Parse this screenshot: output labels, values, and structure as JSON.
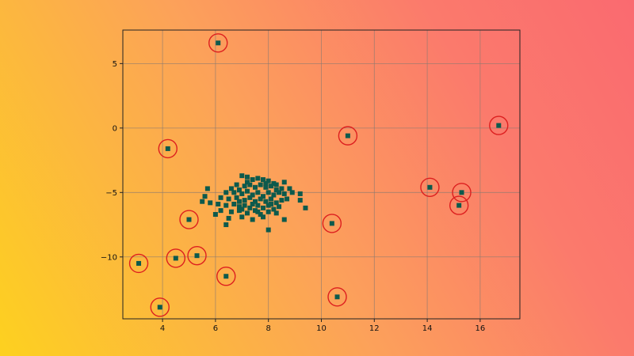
{
  "chart_data": {
    "type": "scatter",
    "title": "",
    "xlabel": "",
    "ylabel": "",
    "xlim": [
      2.5,
      17.5
    ],
    "ylim": [
      -14.8,
      7.6
    ],
    "xticks": [
      4,
      6,
      8,
      10,
      12,
      14,
      16
    ],
    "yticks": [
      5,
      0,
      -5,
      -10
    ],
    "xtick_labels": [
      "4",
      "6",
      "8",
      "10",
      "12",
      "14",
      "16"
    ],
    "ytick_labels": [
      "5",
      "0",
      "−5",
      "−10"
    ],
    "grid": true,
    "legend": "none",
    "marker": "square",
    "marker_color": "#0d5a4c",
    "outlier_ring_color": "#dd1f1f",
    "outliers": [
      {
        "x": 6.1,
        "y": 6.6
      },
      {
        "x": 4.2,
        "y": -1.6
      },
      {
        "x": 11.0,
        "y": -0.6
      },
      {
        "x": 16.7,
        "y": 0.2
      },
      {
        "x": 14.1,
        "y": -4.6
      },
      {
        "x": 15.3,
        "y": -5.0
      },
      {
        "x": 15.2,
        "y": -6.0
      },
      {
        "x": 5.0,
        "y": -7.1
      },
      {
        "x": 10.4,
        "y": -7.4
      },
      {
        "x": 3.1,
        "y": -10.5
      },
      {
        "x": 4.5,
        "y": -10.1
      },
      {
        "x": 5.3,
        "y": -9.9
      },
      {
        "x": 6.4,
        "y": -11.5
      },
      {
        "x": 3.9,
        "y": -13.9
      },
      {
        "x": 10.6,
        "y": -13.1
      }
    ],
    "cluster": [
      {
        "x": 7.0,
        "y": -3.7
      },
      {
        "x": 7.2,
        "y": -3.8
      },
      {
        "x": 7.4,
        "y": -4.0
      },
      {
        "x": 7.6,
        "y": -3.9
      },
      {
        "x": 7.8,
        "y": -4.0
      },
      {
        "x": 8.0,
        "y": -4.1
      },
      {
        "x": 8.2,
        "y": -4.3
      },
      {
        "x": 8.6,
        "y": -4.2
      },
      {
        "x": 6.8,
        "y": -4.4
      },
      {
        "x": 7.1,
        "y": -4.5
      },
      {
        "x": 7.3,
        "y": -4.4
      },
      {
        "x": 7.5,
        "y": -4.6
      },
      {
        "x": 7.7,
        "y": -4.4
      },
      {
        "x": 7.9,
        "y": -4.6
      },
      {
        "x": 8.1,
        "y": -4.5
      },
      {
        "x": 8.3,
        "y": -4.4
      },
      {
        "x": 8.5,
        "y": -4.7
      },
      {
        "x": 8.8,
        "y": -4.7
      },
      {
        "x": 6.6,
        "y": -4.7
      },
      {
        "x": 6.4,
        "y": -5.0
      },
      {
        "x": 6.7,
        "y": -5.0
      },
      {
        "x": 6.9,
        "y": -4.8
      },
      {
        "x": 7.0,
        "y": -5.1
      },
      {
        "x": 7.2,
        "y": -4.9
      },
      {
        "x": 7.4,
        "y": -5.2
      },
      {
        "x": 7.6,
        "y": -5.0
      },
      {
        "x": 7.8,
        "y": -5.3
      },
      {
        "x": 8.0,
        "y": -5.0
      },
      {
        "x": 8.2,
        "y": -5.2
      },
      {
        "x": 8.4,
        "y": -5.0
      },
      {
        "x": 8.6,
        "y": -5.1
      },
      {
        "x": 8.9,
        "y": -5.0
      },
      {
        "x": 9.2,
        "y": -5.1
      },
      {
        "x": 6.2,
        "y": -5.4
      },
      {
        "x": 6.5,
        "y": -5.5
      },
      {
        "x": 6.8,
        "y": -5.4
      },
      {
        "x": 7.1,
        "y": -5.6
      },
      {
        "x": 7.3,
        "y": -5.4
      },
      {
        "x": 7.5,
        "y": -5.7
      },
      {
        "x": 7.7,
        "y": -5.5
      },
      {
        "x": 7.9,
        "y": -5.7
      },
      {
        "x": 8.1,
        "y": -5.5
      },
      {
        "x": 8.3,
        "y": -5.8
      },
      {
        "x": 8.5,
        "y": -5.6
      },
      {
        "x": 8.7,
        "y": -5.5
      },
      {
        "x": 9.2,
        "y": -5.6
      },
      {
        "x": 5.8,
        "y": -5.8
      },
      {
        "x": 6.1,
        "y": -5.9
      },
      {
        "x": 6.4,
        "y": -6.0
      },
      {
        "x": 6.7,
        "y": -5.9
      },
      {
        "x": 6.9,
        "y": -6.1
      },
      {
        "x": 7.1,
        "y": -6.0
      },
      {
        "x": 7.3,
        "y": -6.2
      },
      {
        "x": 7.6,
        "y": -6.0
      },
      {
        "x": 7.8,
        "y": -6.2
      },
      {
        "x": 8.0,
        "y": -6.0
      },
      {
        "x": 8.2,
        "y": -6.3
      },
      {
        "x": 8.4,
        "y": -6.1
      },
      {
        "x": 6.2,
        "y": -6.4
      },
      {
        "x": 6.6,
        "y": -6.5
      },
      {
        "x": 6.9,
        "y": -6.4
      },
      {
        "x": 7.2,
        "y": -6.6
      },
      {
        "x": 7.5,
        "y": -6.4
      },
      {
        "x": 7.7,
        "y": -6.7
      },
      {
        "x": 8.0,
        "y": -6.5
      },
      {
        "x": 8.3,
        "y": -6.6
      },
      {
        "x": 6.0,
        "y": -6.7
      },
      {
        "x": 6.5,
        "y": -7.0
      },
      {
        "x": 7.0,
        "y": -6.9
      },
      {
        "x": 7.4,
        "y": -7.1
      },
      {
        "x": 7.8,
        "y": -6.9
      },
      {
        "x": 8.6,
        "y": -7.1
      },
      {
        "x": 6.4,
        "y": -7.5
      },
      {
        "x": 8.0,
        "y": -7.9
      },
      {
        "x": 5.5,
        "y": -5.7
      },
      {
        "x": 5.7,
        "y": -4.7
      },
      {
        "x": 5.6,
        "y": -5.3
      },
      {
        "x": 9.4,
        "y": -6.2
      },
      {
        "x": 7.2,
        "y": -4.2
      },
      {
        "x": 7.9,
        "y": -4.3
      },
      {
        "x": 8.3,
        "y": -4.8
      },
      {
        "x": 6.9,
        "y": -5.7
      },
      {
        "x": 7.4,
        "y": -5.9
      },
      {
        "x": 8.1,
        "y": -5.9
      },
      {
        "x": 7.0,
        "y": -6.3
      },
      {
        "x": 7.6,
        "y": -6.5
      }
    ]
  }
}
